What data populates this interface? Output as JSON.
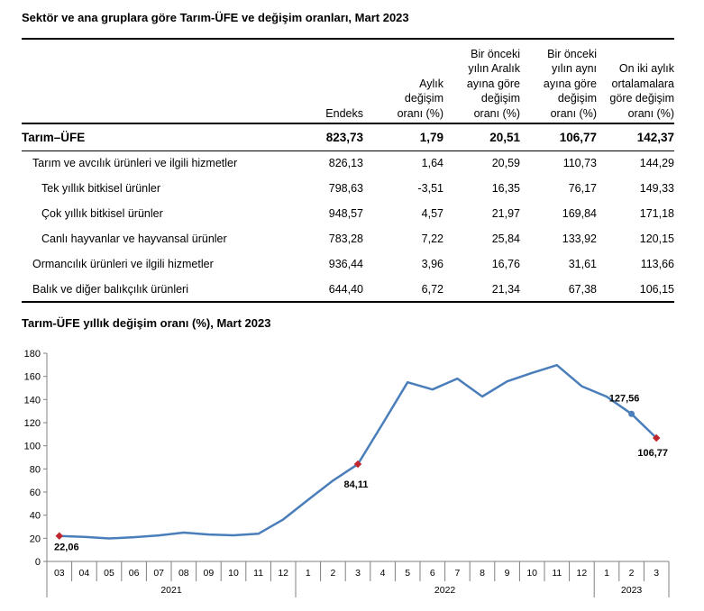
{
  "table": {
    "title": "Sektör ve ana gruplara göre Tarım-ÜFE ve değişim oranları, Mart 2023",
    "headers": [
      "",
      "Endeks",
      "Aylık\ndeğişim\noranı (%)",
      "Bir önceki\nyılın Aralık\nayına göre\ndeğişim\noranı (%)",
      "Bir önceki\nyılın aynı\nayına göre\ndeğişim\noranı (%)",
      "On iki aylık\nortalamalara\ngöre değişim\noranı (%)"
    ],
    "rows": [
      {
        "label": "Tarım–ÜFE",
        "values": [
          "823,73",
          "1,79",
          "20,51",
          "106,77",
          "142,37"
        ]
      },
      {
        "label": "Tarım ve avcılık ürünleri ve ilgili hizmetler",
        "values": [
          "826,13",
          "1,64",
          "20,59",
          "110,73",
          "144,29"
        ]
      },
      {
        "label": "Tek yıllık bitkisel ürünler",
        "values": [
          "798,63",
          "-3,51",
          "16,35",
          "76,17",
          "149,33"
        ]
      },
      {
        "label": "Çok yıllık bitkisel ürünler",
        "values": [
          "948,57",
          "4,57",
          "21,97",
          "169,84",
          "171,18"
        ]
      },
      {
        "label": "Canlı hayvanlar ve hayvansal ürünler",
        "values": [
          "783,28",
          "7,22",
          "25,84",
          "133,92",
          "120,15"
        ]
      },
      {
        "label": "Ormancılık ürünleri ve ilgili hizmetler",
        "values": [
          "936,44",
          "3,96",
          "16,76",
          "31,61",
          "113,66"
        ]
      },
      {
        "label": "Balık ve diğer balıkçılık ürünleri",
        "values": [
          "644,40",
          "6,72",
          "21,34",
          "67,38",
          "106,15"
        ]
      }
    ]
  },
  "chart_data": {
    "type": "line",
    "title": "Tarım-ÜFE yıllık değişim oranı (%), Mart 2023",
    "xlabel": "",
    "ylabel": "",
    "ylim": [
      0,
      180
    ],
    "yticks": [
      "0",
      "20",
      "40",
      "60",
      "80",
      "100",
      "120",
      "140",
      "160",
      "180"
    ],
    "grid": false,
    "categories": [
      "03",
      "04",
      "05",
      "06",
      "07",
      "08",
      "09",
      "10",
      "11",
      "12",
      "1",
      "2",
      "3",
      "4",
      "5",
      "6",
      "7",
      "8",
      "9",
      "10",
      "11",
      "12",
      "1",
      "2",
      "3"
    ],
    "year_groups": [
      {
        "label": "2021",
        "count": 10
      },
      {
        "label": "2022",
        "count": 12
      },
      {
        "label": "2023",
        "count": 3
      }
    ],
    "series": [
      {
        "values": [
          22.06,
          21.3,
          19.9,
          21.0,
          22.5,
          24.9,
          23.3,
          22.6,
          23.9,
          36.3,
          53.3,
          69.9,
          84.11,
          119.2,
          154.9,
          148.7,
          158.1,
          142.6,
          155.7,
          163.0,
          169.7,
          151.5,
          142.5,
          127.56,
          106.77
        ],
        "color": "#4a7ebb"
      }
    ],
    "annotations": [
      {
        "index": 0,
        "label": "22,06",
        "marker_color": "#c0262d"
      },
      {
        "index": 12,
        "label": "84,11",
        "marker_color": "#c0262d"
      },
      {
        "index": 23,
        "label": "127,56",
        "marker_color": "#4a7ebb"
      },
      {
        "index": 24,
        "label": "106,77",
        "marker_color": "#c0262d"
      }
    ]
  }
}
